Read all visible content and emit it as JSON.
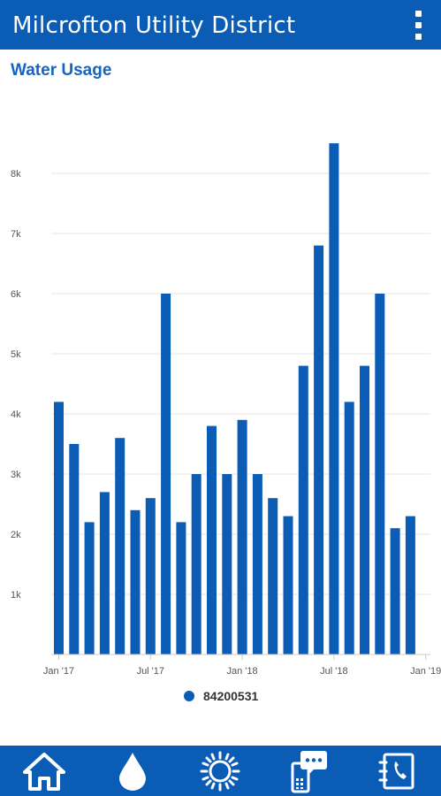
{
  "header": {
    "title": "Milcrofton Utility District",
    "menu_icon": "more-vertical-icon"
  },
  "section": {
    "title": "Water Usage"
  },
  "legend": {
    "label": "84200531",
    "color": "#0b5cb5"
  },
  "chart_data": {
    "type": "bar",
    "title": "Water Usage",
    "xlabel": "",
    "ylabel": "",
    "ylim": [
      0,
      8600
    ],
    "y_ticks": [
      1000,
      2000,
      3000,
      4000,
      5000,
      6000,
      7000,
      8000
    ],
    "y_tick_labels": [
      "1k",
      "2k",
      "3k",
      "4k",
      "5k",
      "6k",
      "7k",
      "8k"
    ],
    "x_tick_labels": [
      "Jan '17",
      "Jul '17",
      "Jan '18",
      "Jul '18",
      "Jan '19"
    ],
    "categories": [
      "2017-01",
      "2017-02",
      "2017-03",
      "2017-04",
      "2017-05",
      "2017-06",
      "2017-07",
      "2017-08",
      "2017-09",
      "2017-10",
      "2017-11",
      "2017-12",
      "2018-01",
      "2018-02",
      "2018-03",
      "2018-04",
      "2018-05",
      "2018-06",
      "2018-07",
      "2018-08",
      "2018-09",
      "2018-10",
      "2018-11",
      "2018-12"
    ],
    "series": [
      {
        "name": "84200531",
        "color": "#0b5cb5",
        "values": [
          4200,
          3500,
          2200,
          2700,
          3600,
          2400,
          2600,
          6000,
          2200,
          3000,
          3800,
          3000,
          3900,
          3000,
          2600,
          2300,
          4800,
          6800,
          8500,
          4200,
          4800,
          6000,
          2100,
          2300
        ]
      }
    ],
    "grid": true,
    "legend_position": "bottom"
  },
  "bottom_nav": {
    "items": [
      {
        "icon": "home-icon"
      },
      {
        "icon": "water-drop-icon"
      },
      {
        "icon": "sun-icon"
      },
      {
        "icon": "chat-phone-icon"
      },
      {
        "icon": "contact-book-icon"
      }
    ]
  }
}
